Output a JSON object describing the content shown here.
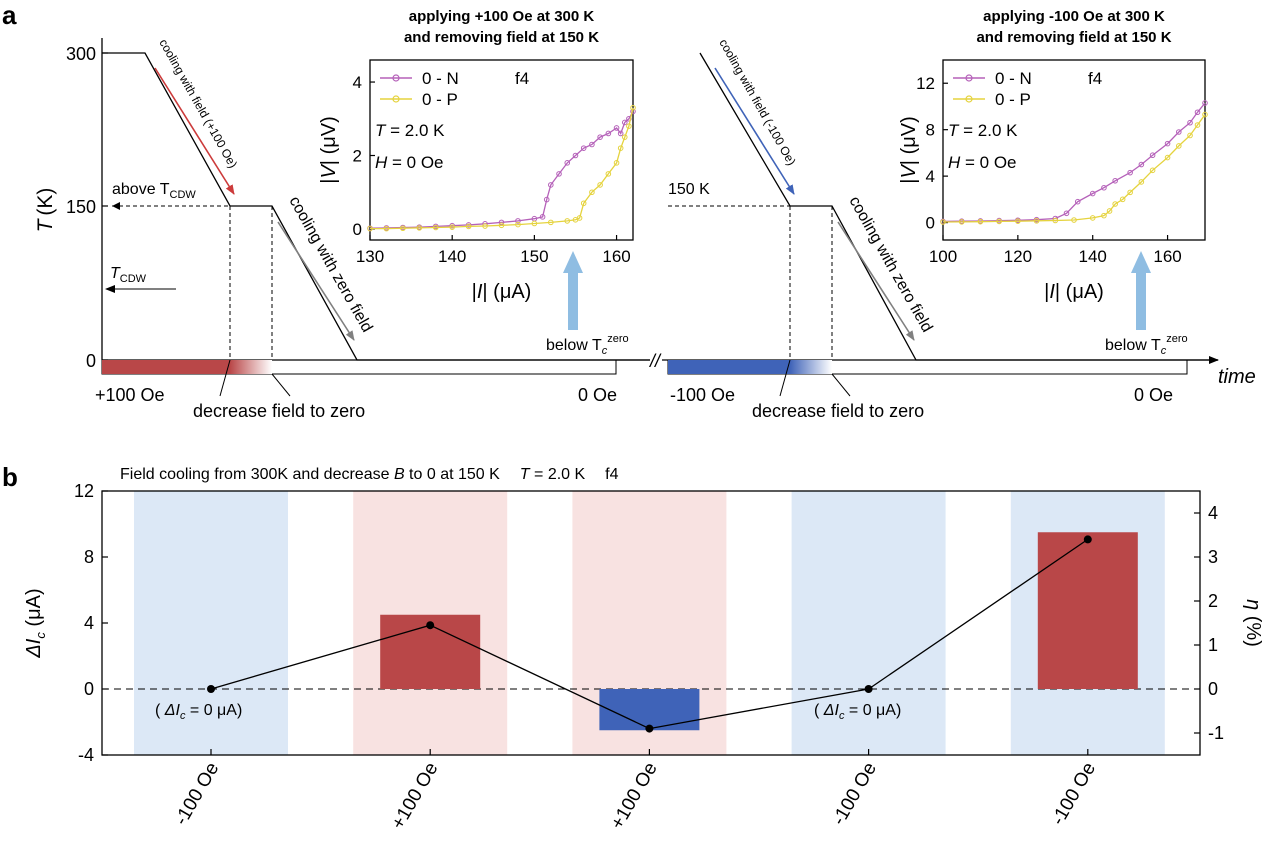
{
  "panel_a": {
    "label": "a",
    "y_axis": {
      "title": "T",
      "unit": "(K)",
      "ticks": [
        "0",
        "150",
        "300"
      ]
    },
    "time_label": "time",
    "break_mark": "//",
    "left": {
      "ramp_label": "cooling with field (+100 Oe)",
      "zero_ramp_label": "cooling with zero field",
      "annotation_above": "above T",
      "annotation_above_sub": "CDW",
      "annotation_tcdw": "T",
      "annotation_tcdw_sub": "CDW",
      "field_start": "+100 Oe",
      "field_decrease": "decrease field to zero",
      "field_end": "0 Oe",
      "below_label": "below T",
      "below_sub": "c",
      "below_sup": "zero"
    },
    "right": {
      "ramp_label": "cooling with field (-100 Oe)",
      "zero_ramp_label": "cooling with zero field",
      "annotation_temp": "150 K",
      "field_start": "-100 Oe",
      "field_decrease": "decrease field to zero",
      "field_end": "0 Oe",
      "below_label": "below T",
      "below_sub": "c",
      "below_sup": "zero"
    },
    "colors": {
      "positive": "#b94748",
      "negative": "#3f63b8",
      "arrow": "#8fbde2",
      "red_line": "#cc3b3b",
      "blue_line": "#3f63b8"
    }
  },
  "panel_b": {
    "label": "b",
    "title_parts": [
      "Field cooling from 300K and decrease ",
      "B",
      " to 0 at 150 K",
      "T",
      " = 2.0 K",
      "f4"
    ],
    "ylabel_left": [
      "ΔI",
      "c",
      " (μA)"
    ],
    "ylabel_right": [
      "η",
      " (%)"
    ],
    "note": [
      "( ",
      "ΔI",
      "c",
      " = 0 μA)"
    ],
    "colors": {
      "bg_blue": "#dce8f6",
      "bg_red": "#f8e2e1",
      "bar_pos": "#b94748",
      "bar_neg": "#3f63b8"
    }
  },
  "chart_data": [
    {
      "type": "line",
      "title": "applying +100 Oe at 300 K and removing field at 150 K",
      "xlabel": "|I| (μA)",
      "ylabel": "|V| (μV)",
      "xlim": [
        130,
        162
      ],
      "ylim": [
        -0.3,
        4.6
      ],
      "xticks": [
        130,
        140,
        150,
        160
      ],
      "yticks": [
        0,
        2,
        4
      ],
      "annotations": [
        "f4",
        "T = 2.0 K",
        "H = 0 Oe"
      ],
      "legend_position": "top-left",
      "series": [
        {
          "name": "0 - N",
          "color": "#b561b9",
          "x": [
            130,
            132,
            134,
            136,
            138,
            140,
            142,
            144,
            146,
            148,
            150,
            151,
            151.5,
            152,
            153,
            154,
            155,
            156,
            157,
            158,
            159,
            160,
            160.5,
            161,
            161.5,
            162
          ],
          "y": [
            0.02,
            0.03,
            0.04,
            0.05,
            0.07,
            0.09,
            0.11,
            0.14,
            0.18,
            0.22,
            0.28,
            0.33,
            0.8,
            1.2,
            1.5,
            1.8,
            2.0,
            2.2,
            2.3,
            2.5,
            2.6,
            2.75,
            2.6,
            2.9,
            3.0,
            3.2
          ]
        },
        {
          "name": "0 - P",
          "color": "#e5d33e",
          "x": [
            130,
            132,
            134,
            136,
            138,
            140,
            142,
            144,
            146,
            148,
            150,
            152,
            154,
            155,
            155.5,
            156,
            157,
            158,
            159,
            160,
            160.5,
            161,
            161.5,
            162
          ],
          "y": [
            0.01,
            0.01,
            0.02,
            0.03,
            0.04,
            0.05,
            0.07,
            0.08,
            0.1,
            0.12,
            0.15,
            0.18,
            0.22,
            0.25,
            0.3,
            0.7,
            1.0,
            1.2,
            1.5,
            1.8,
            2.2,
            2.5,
            2.8,
            3.3
          ]
        }
      ]
    },
    {
      "type": "line",
      "title": "applying -100 Oe at 300 K and removing field at 150 K",
      "xlabel": "|I| (μA)",
      "ylabel": "|V| (μV)",
      "xlim": [
        100,
        170
      ],
      "ylim": [
        -1.5,
        14
      ],
      "xticks": [
        100,
        120,
        140,
        160
      ],
      "yticks": [
        0,
        4,
        8,
        12
      ],
      "annotations": [
        "f4",
        "T = 2.0 K",
        "H = 0 Oe"
      ],
      "legend_position": "top-left",
      "series": [
        {
          "name": "0 - N",
          "color": "#b561b9",
          "x": [
            100,
            105,
            110,
            115,
            120,
            125,
            130,
            133,
            136,
            140,
            143,
            146,
            150,
            153,
            156,
            160,
            163,
            166,
            168,
            170
          ],
          "y": [
            0.1,
            0.12,
            0.14,
            0.17,
            0.2,
            0.25,
            0.35,
            0.8,
            1.8,
            2.5,
            3.0,
            3.6,
            4.3,
            5.0,
            5.8,
            6.8,
            7.8,
            8.6,
            9.5,
            10.3
          ]
        },
        {
          "name": "0 - P",
          "color": "#e5d33e",
          "x": [
            100,
            105,
            110,
            115,
            120,
            125,
            130,
            135,
            140,
            143,
            144.5,
            146,
            148,
            150,
            153,
            156,
            160,
            163,
            166,
            168,
            170
          ],
          "y": [
            0.05,
            0.06,
            0.08,
            0.1,
            0.12,
            0.15,
            0.18,
            0.22,
            0.4,
            0.6,
            1.0,
            1.6,
            2.0,
            2.6,
            3.5,
            4.5,
            5.6,
            6.6,
            7.5,
            8.4,
            9.3
          ]
        }
      ]
    },
    {
      "type": "bar",
      "title": "Field cooling from 300K and decrease B to 0 at 150 K   T = 2.0 K   f4",
      "categories": [
        "-100 Oe",
        "+100 Oe",
        "+100 Oe",
        "-100 Oe",
        "-100 Oe"
      ],
      "background": [
        "blue",
        "red",
        "red",
        "blue",
        "blue"
      ],
      "ylabel": "ΔIc (μA)",
      "ylim": [
        -4,
        12
      ],
      "yticks": [
        -4,
        0,
        4,
        8,
        12
      ],
      "y2label": "η (%)",
      "y2lim": [
        -1.5,
        4.5
      ],
      "y2ticks": [
        -1,
        0,
        1,
        2,
        3,
        4
      ],
      "series": [
        {
          "name": "ΔIc",
          "values": [
            0,
            4.5,
            -2.5,
            0,
            9.5
          ]
        },
        {
          "name": "η",
          "values": [
            0,
            1.45,
            -0.9,
            0,
            3.4
          ]
        }
      ]
    }
  ]
}
